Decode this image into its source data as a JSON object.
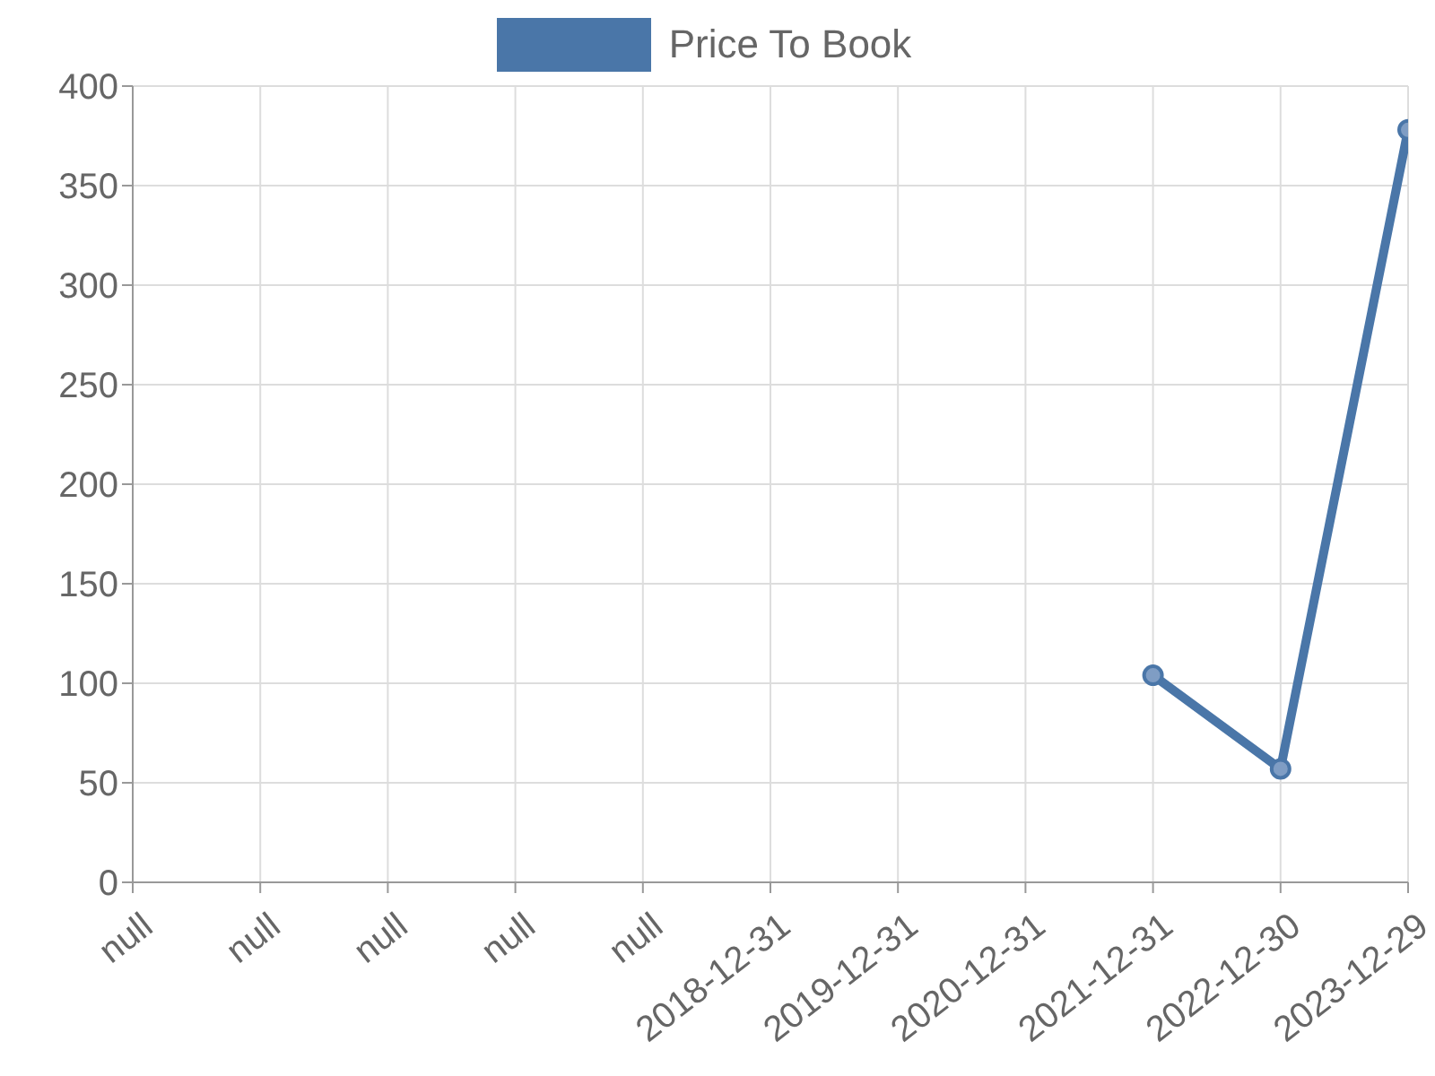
{
  "chart_data": {
    "type": "line",
    "categories": [
      "null",
      "null",
      "null",
      "null",
      "null",
      "2018-12-31",
      "2019-12-31",
      "2020-12-31",
      "2021-12-31",
      "2022-12-30",
      "2023-12-29"
    ],
    "series": [
      {
        "name": "Price To Book",
        "color": "#4a76a8",
        "values": [
          null,
          null,
          null,
          null,
          null,
          null,
          null,
          null,
          104,
          57,
          378
        ]
      }
    ],
    "ylim": [
      0,
      400
    ],
    "yticks": [
      0,
      50,
      100,
      150,
      200,
      250,
      300,
      350,
      400
    ],
    "grid": true,
    "legend": "top",
    "marker": "circle",
    "line_style": "solid"
  }
}
